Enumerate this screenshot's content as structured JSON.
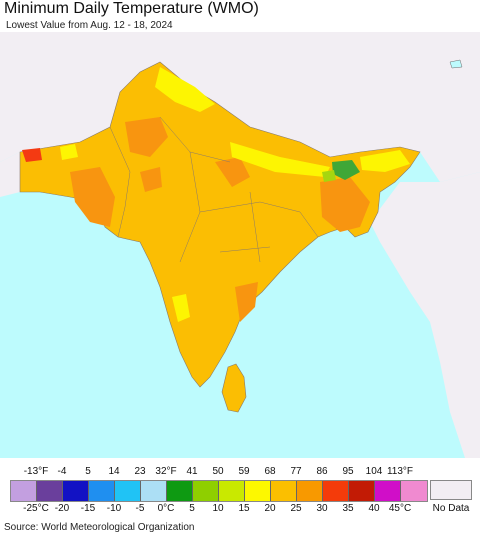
{
  "header": {
    "title": "Minimum Daily Temperature (WMO)",
    "subtitle": "Lowest Value from Aug. 12 - 18, 2024"
  },
  "colors": {
    "ocean": "#bdfbfd",
    "land_outside": "#f2eef3",
    "base_fill": "#fbbe03",
    "deep_orange": "#f89510",
    "yellow": "#fdf502",
    "red": "#f43a12",
    "green": "#3fa737",
    "yellow_green": "#a6d60f",
    "borders": "#8a7a6a"
  },
  "legend": {
    "fahrenheit": [
      "-13°F",
      "-4",
      "5",
      "14",
      "23",
      "32°F",
      "41",
      "50",
      "59",
      "68",
      "77",
      "86",
      "95",
      "104",
      "113°F"
    ],
    "celsius": [
      "-25°C",
      "-20",
      "-15",
      "-10",
      "-5",
      "0°C",
      "5",
      "10",
      "15",
      "20",
      "25",
      "30",
      "35",
      "40",
      "45°C"
    ],
    "swatches": [
      "#c39fe0",
      "#6a3f9c",
      "#1212c4",
      "#1f8ff0",
      "#20c3f5",
      "#acdff5",
      "#0e9a12",
      "#8fcf00",
      "#c9e900",
      "#fdf800",
      "#fbbf00",
      "#f89900",
      "#f43b0a",
      "#c21b05",
      "#d00ec8",
      "#f08ad0"
    ],
    "no_data_label": "No Data",
    "no_data_color": "#f2eef3"
  },
  "footer": {
    "source": "Source: World Meteorological Organization"
  }
}
